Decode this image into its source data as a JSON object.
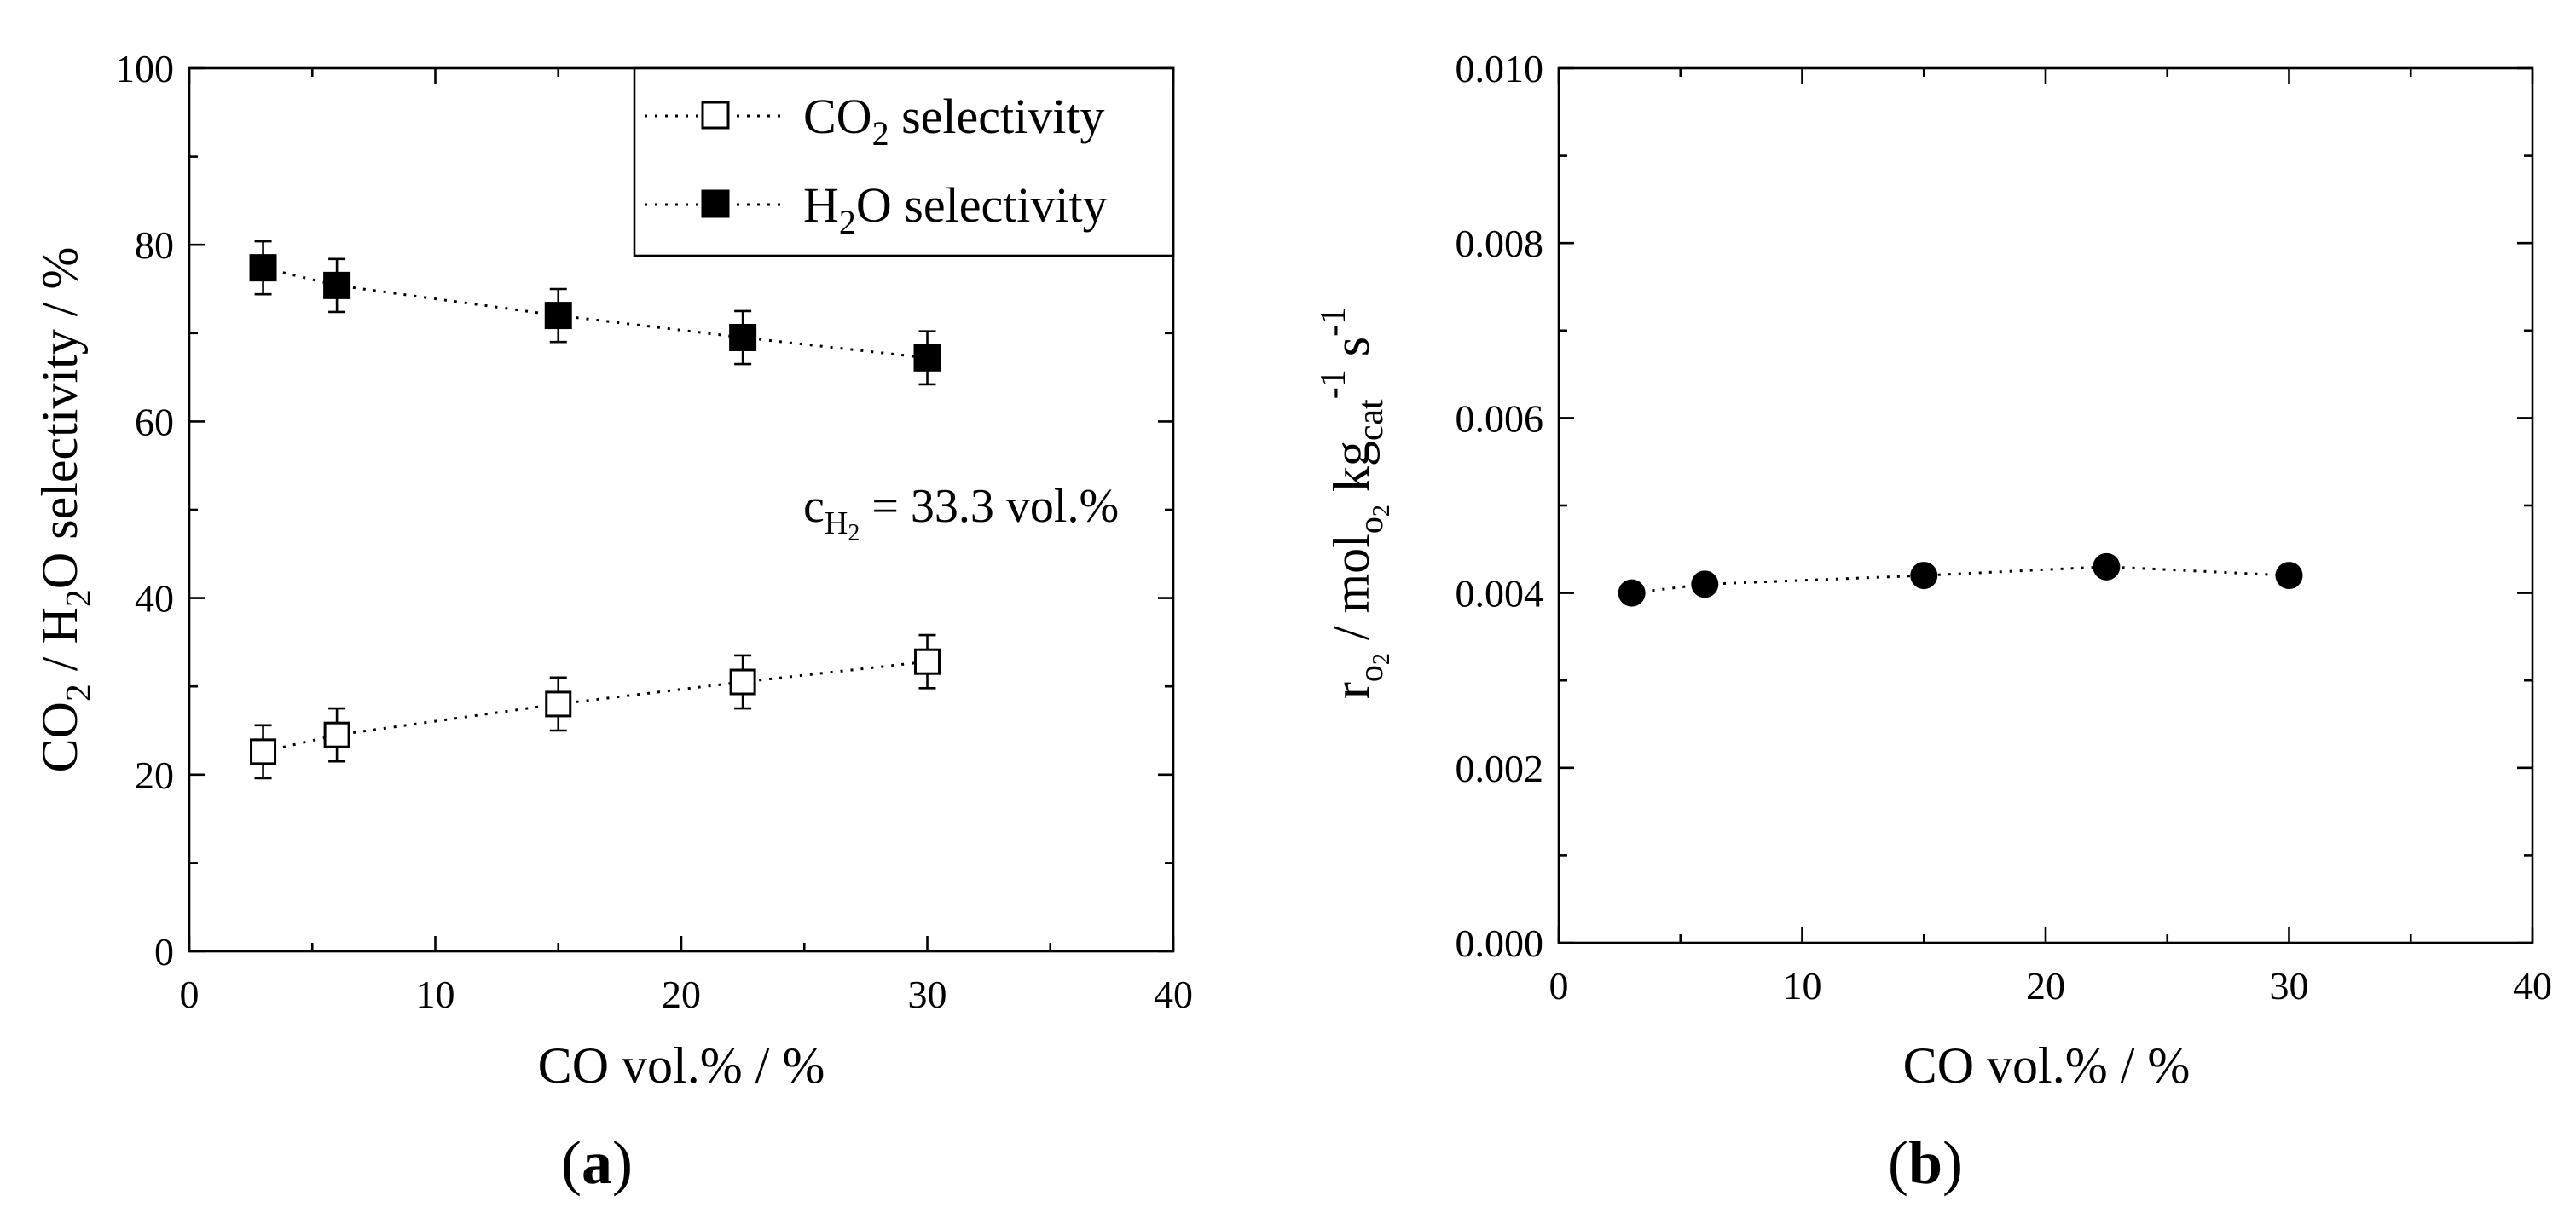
{
  "chart_data": [
    {
      "type": "scatter",
      "panel_label": "(a)",
      "panel_letter": "a",
      "xlabel": "CO vol.% / %",
      "ylabel": {
        "part1": "CO",
        "sub1": "2",
        "part2": " / H",
        "sub2": "2",
        "part3": "O selectivity / %"
      },
      "xlim": [
        0,
        40
      ],
      "ylim": [
        0,
        100
      ],
      "xticks": [
        0,
        10,
        20,
        30,
        40
      ],
      "yticks": [
        0,
        20,
        40,
        60,
        80,
        100
      ],
      "xtick_labels": [
        "0",
        "10",
        "20",
        "30",
        "40"
      ],
      "ytick_labels": [
        "0",
        "20",
        "40",
        "60",
        "80",
        "100"
      ],
      "legend_position": "top-right",
      "annotation": {
        "prefix": "c",
        "sub": "H",
        "subsub": "2",
        "text": " = 33.3 vol.%"
      },
      "series": [
        {
          "name": "CO2 selectivity",
          "legend_parts": {
            "a": "CO",
            "sub": "2",
            "b": " selectivity"
          },
          "marker": "open-square",
          "x": [
            3,
            6,
            15,
            22.5,
            30
          ],
          "values": [
            22.6,
            24.5,
            28.0,
            30.5,
            32.8
          ],
          "error": [
            3,
            3,
            3,
            3,
            3
          ]
        },
        {
          "name": "H2O selectivity",
          "legend_parts": {
            "a": "H",
            "sub": "2",
            "b": "O selectivity"
          },
          "marker": "filled-square",
          "x": [
            3,
            6,
            15,
            22.5,
            30
          ],
          "values": [
            77.4,
            75.4,
            72.0,
            69.5,
            67.2
          ],
          "error": [
            3,
            3,
            3,
            3,
            3
          ]
        }
      ]
    },
    {
      "type": "scatter",
      "panel_label": "(b)",
      "panel_letter": "b",
      "xlabel": "CO vol.% / %",
      "ylabel": {
        "r": "r",
        "o2_sub": "o",
        "o2_subsub": "2",
        "mid": " / mol",
        "mol_sub": "o",
        "mol_subsub": "2",
        "kg": " kg",
        "cat": "cat",
        "neg1": "-1",
        "s": " s",
        "neg1b": "-1"
      },
      "xlim": [
        0,
        40
      ],
      "ylim": [
        0,
        0.01
      ],
      "xticks": [
        0,
        10,
        20,
        30,
        40
      ],
      "yticks": [
        0,
        0.002,
        0.004,
        0.006,
        0.008,
        0.01
      ],
      "xtick_labels": [
        "0",
        "10",
        "20",
        "30",
        "40"
      ],
      "ytick_labels": [
        "0.000",
        "0.002",
        "0.004",
        "0.006",
        "0.008",
        "0.010"
      ],
      "series": [
        {
          "name": "rO2",
          "marker": "filled-circle",
          "x": [
            3,
            6,
            15,
            22.5,
            30
          ],
          "values": [
            0.004,
            0.0041,
            0.0042,
            0.0043,
            0.0042
          ]
        }
      ]
    }
  ]
}
